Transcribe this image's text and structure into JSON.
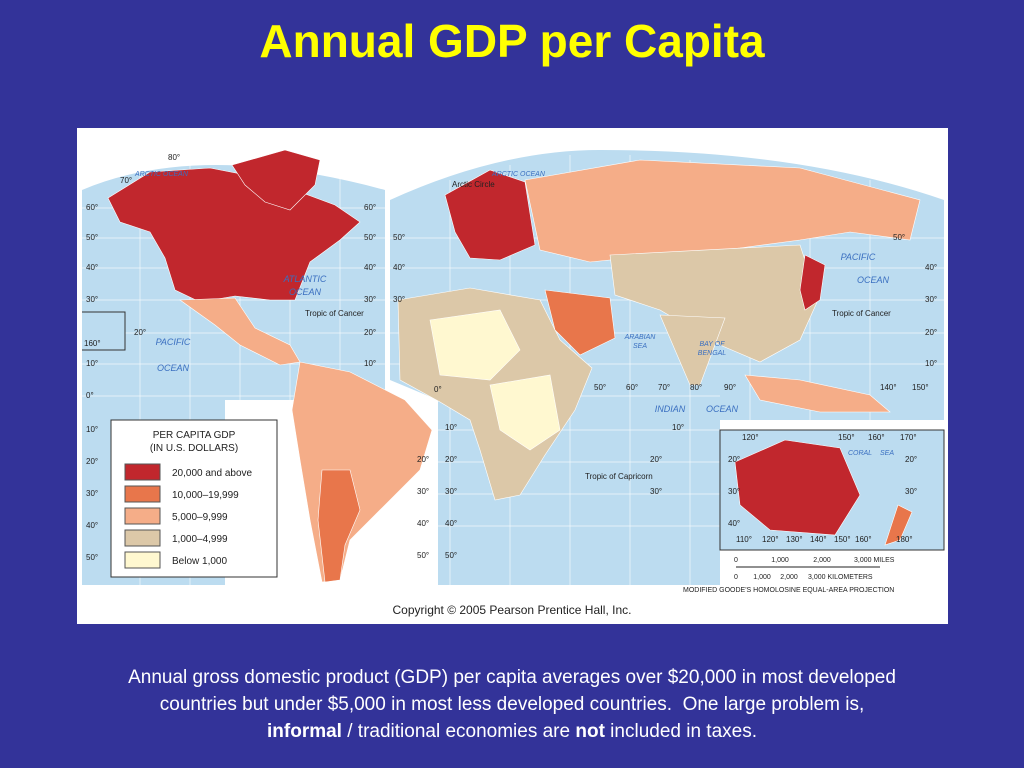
{
  "title": "Annual GDP per Capita",
  "map": {
    "legend": {
      "title": [
        "PER CAPITA GDP",
        "(IN U.S. DOLLARS)"
      ],
      "items": [
        "20,000 and above",
        "10,000–19,999",
        "5,000–9,999",
        "1,000–4,999",
        "Below 1,000"
      ]
    },
    "labels": [
      "ARCTIC OCEAN",
      "ARCTIC OCEAN",
      "Arctic Circle",
      "ATLANTIC",
      "OCEAN",
      "PACIFIC",
      "OCEAN",
      "PACIFIC",
      "OCEAN",
      "Tropic of Cancer",
      "Tropic of Cancer",
      "ARABIAN",
      "SEA",
      "BAY OF",
      "BENGAL",
      "INDIAN",
      "OCEAN",
      "Tropic of Capricorn",
      "CORAL",
      "SEA"
    ],
    "degrees_left": [
      "80°",
      "70°",
      "60°",
      "50°",
      "40°",
      "30°",
      "20°",
      "160°",
      "10°",
      "0°",
      "10°",
      "20°",
      "30°",
      "40°",
      "50°"
    ],
    "degrees_mid": [
      "60°",
      "50°",
      "40°",
      "30°",
      "20°",
      "10°",
      "20°",
      "30°",
      "40°",
      "50°",
      "50°",
      "40°",
      "30°",
      "10°",
      "20°",
      "30°",
      "40°",
      "50°"
    ],
    "degrees_right": [
      "0°",
      "50°",
      "60°",
      "70°",
      "80°",
      "90°",
      "140°",
      "150°",
      "50°",
      "40°",
      "30°",
      "20°",
      "10°",
      "10°",
      "20°",
      "30°"
    ],
    "inset_degrees": [
      "120°",
      "150°",
      "160°",
      "170°",
      "20°",
      "20°",
      "30°",
      "30°",
      "40°",
      "110°",
      "120°",
      "130°",
      "140°",
      "150°",
      "160°",
      "180°"
    ],
    "scale": [
      "0",
      "1,000",
      "2,000",
      "3,000 MILES",
      "0",
      "1,000",
      "2,000",
      "3,000 KILOMETERS"
    ],
    "projection": "MODIFIED GOODE'S HOMOLOSINE EQUAL-AREA PROJECTION",
    "copyright": "Copyright © 2005 Pearson Prentice Hall, Inc."
  },
  "caption": {
    "line1": "Annual gross domestic product (GDP) per capita averages over $20,000 in most developed",
    "line2": "countries but under $5,000 in most less developed countries.  One large problem is,",
    "line3": [
      "informal",
      " / traditional economies are ",
      "not",
      " included in taxes."
    ]
  }
}
